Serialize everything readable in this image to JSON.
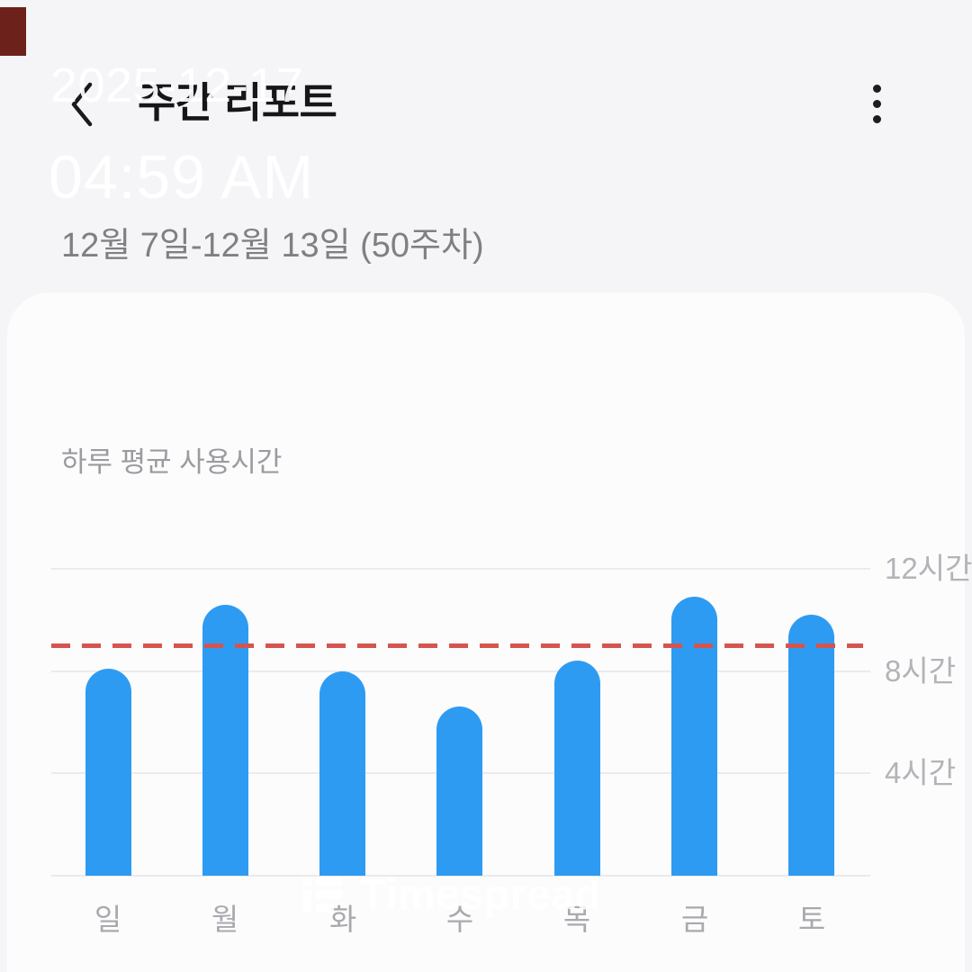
{
  "header": {
    "back_icon": "chevron-left",
    "title": "주간 리포트",
    "menu_icon": "more-vertical"
  },
  "overlay_watermarks": {
    "date": "2025-12-17",
    "time": "04:59 AM",
    "brand": "Timespread",
    "brand_icon": "timespread-logo"
  },
  "date_range_label": "12월 7일-12월 13일 (50주차)",
  "chart_data": {
    "type": "bar",
    "title": "하루 평균 사용시간",
    "categories": [
      "일",
      "월",
      "화",
      "수",
      "목",
      "금",
      "토"
    ],
    "category_names_en": [
      "sun",
      "mon",
      "tue",
      "wed",
      "thu",
      "fri",
      "sat"
    ],
    "values_hours": [
      8.1,
      10.6,
      8.0,
      6.6,
      8.4,
      10.9,
      10.2
    ],
    "unit": "시간",
    "y_tick_labels": [
      "12시간",
      "8시간",
      "4시간"
    ],
    "y_tick_values": [
      12,
      8,
      4
    ],
    "ylim": [
      0,
      12.3
    ],
    "average_line_hours": 9.0,
    "grid": true,
    "legend": "none",
    "bar_color": "#2e9bf2",
    "average_line_color": "#d6544f"
  },
  "colors": {
    "background": "#f5f5f7",
    "card": "#fcfcfd",
    "corner_artifact": "#6d211b"
  }
}
